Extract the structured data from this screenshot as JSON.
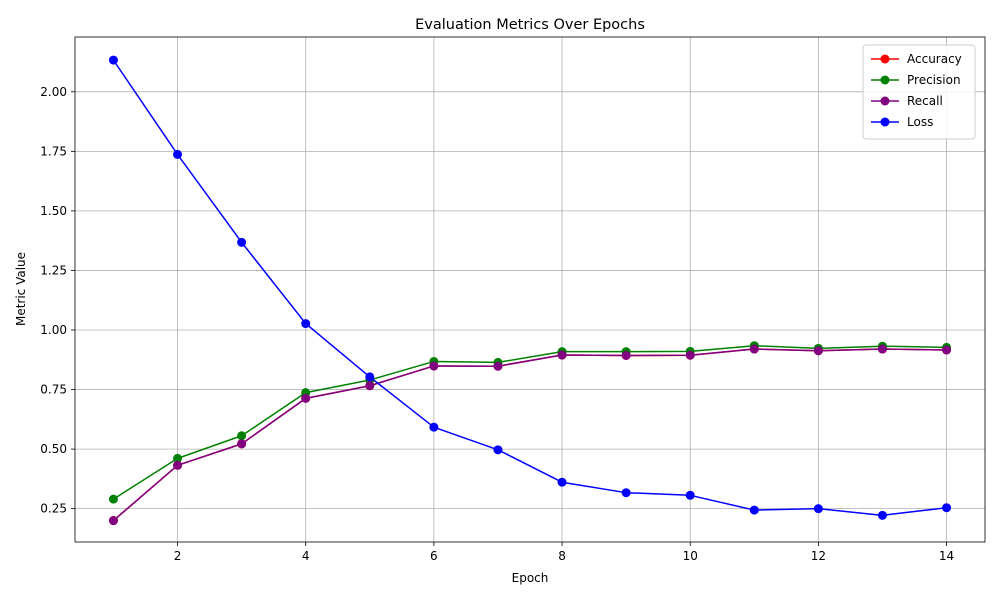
{
  "chart_data": {
    "type": "line",
    "title": "Evaluation Metrics Over Epochs",
    "xlabel": "Epoch",
    "ylabel": "Metric Value",
    "x": [
      1,
      2,
      3,
      4,
      5,
      6,
      7,
      8,
      9,
      10,
      11,
      12,
      13,
      14
    ],
    "xlim": [
      0.4,
      14.6
    ],
    "ylim": [
      0.11,
      2.23
    ],
    "xticks": [
      2,
      4,
      6,
      8,
      10,
      12,
      14
    ],
    "yticks": [
      0.25,
      0.5,
      0.75,
      1.0,
      1.25,
      1.5,
      1.75,
      2.0
    ],
    "ytick_labels": [
      "0.25",
      "0.50",
      "0.75",
      "1.00",
      "1.25",
      "1.50",
      "1.75",
      "2.00"
    ],
    "grid": true,
    "legend_position": "top-right",
    "series": [
      {
        "name": "Accuracy",
        "color": "#ff0000",
        "values": [
          0.2,
          0.432,
          0.522,
          0.713,
          0.766,
          0.849,
          0.848,
          0.895,
          0.893,
          0.894,
          0.92,
          0.913,
          0.92,
          0.916
        ]
      },
      {
        "name": "Precision",
        "color": "#008000",
        "values": [
          0.29,
          0.461,
          0.556,
          0.737,
          0.79,
          0.868,
          0.864,
          0.909,
          0.909,
          0.91,
          0.934,
          0.923,
          0.932,
          0.927
        ]
      },
      {
        "name": "Recall",
        "color": "#800080",
        "values": [
          0.2,
          0.432,
          0.522,
          0.713,
          0.766,
          0.849,
          0.848,
          0.895,
          0.893,
          0.894,
          0.92,
          0.913,
          0.92,
          0.916
        ]
      },
      {
        "name": "Loss",
        "color": "#0000ff",
        "values": [
          2.133,
          1.737,
          1.368,
          1.027,
          0.803,
          0.592,
          0.497,
          0.361,
          0.317,
          0.306,
          0.244,
          0.25,
          0.222,
          0.254
        ]
      }
    ]
  }
}
